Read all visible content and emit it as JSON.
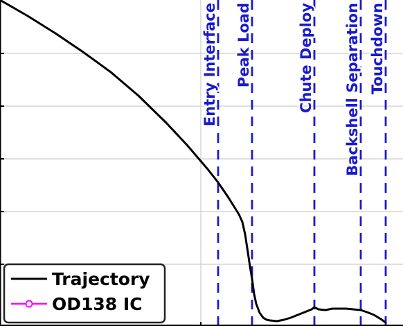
{
  "chart_data": {
    "type": "line",
    "title": "",
    "xlabel": "",
    "ylabel": "",
    "grid": true,
    "legend": {
      "placement": "bottom-left",
      "entries": [
        {
          "label": "Trajectory",
          "color": "#000000",
          "marker": "none"
        },
        {
          "label": "OD138 IC",
          "color": "#ff00ff",
          "marker": "circle"
        }
      ]
    },
    "events": [
      {
        "label": "Entry Interface",
        "x": 315
      },
      {
        "label": "Peak Load",
        "x": 364
      },
      {
        "label": "Chute Deploy",
        "x": 454
      },
      {
        "label": "Backshell Separation",
        "x": 521
      },
      {
        "label": "Touchdown",
        "x": 557
      }
    ],
    "series": [
      {
        "name": "Trajectory",
        "color": "#000000",
        "x": [
          0,
          40,
          80,
          120,
          160,
          200,
          240,
          270,
          300,
          315,
          330,
          340,
          345,
          350,
          354,
          358,
          361,
          364,
          367,
          370,
          375,
          380,
          385,
          390,
          400,
          410,
          420,
          430,
          440,
          450,
          454,
          460,
          470,
          480,
          490,
          500,
          510,
          521,
          530,
          540,
          550,
          557
        ],
        "y": [
          470,
          447,
          422,
          395,
          366,
          332,
          293,
          261,
          226,
          207,
          185,
          169,
          161,
          150,
          132,
          106,
          86,
          68,
          46,
          32,
          19,
          12,
          9,
          8,
          7,
          9,
          12,
          16,
          20,
          24,
          27,
          24,
          23,
          25,
          25,
          25,
          24,
          23,
          20,
          16,
          10,
          5
        ]
      },
      {
        "name": "OD138 IC",
        "color": "#ff00ff",
        "x": [],
        "y": []
      }
    ]
  }
}
